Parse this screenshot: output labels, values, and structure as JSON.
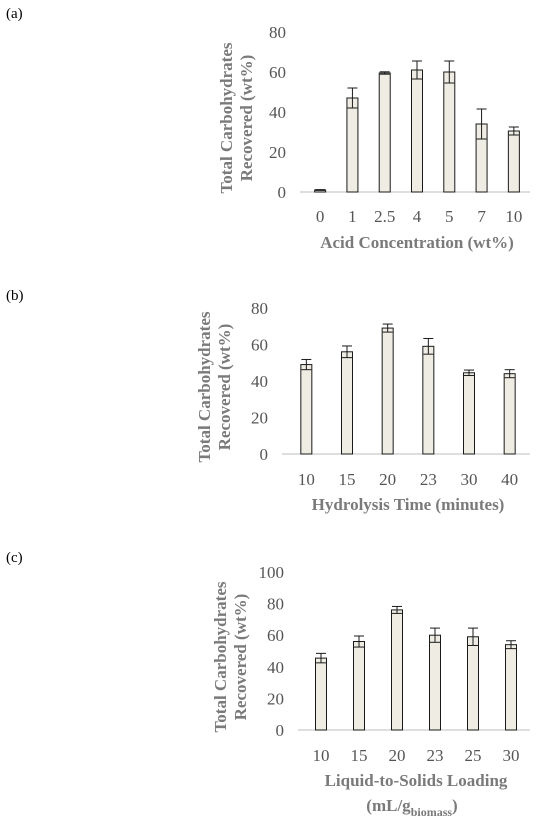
{
  "colors": {
    "bar_fill": "#efede3",
    "bar_stroke": "#1a1a1a",
    "axis": "#bdbdbd",
    "text": "#6e6e6e"
  },
  "chart_data": [
    {
      "panel": "(a)",
      "type": "bar",
      "categories": [
        "0",
        "1",
        "2.5",
        "4",
        "5",
        "7",
        "10"
      ],
      "values": [
        1,
        47,
        59.5,
        61,
        60,
        34,
        30.5
      ],
      "errors": [
        0.2,
        5,
        0.6,
        4.5,
        5.5,
        7.5,
        2
      ],
      "ylim": [
        0,
        80
      ],
      "yticks": [
        "0",
        "20",
        "40",
        "60",
        "80"
      ],
      "ylabel_line1": "Total Carbohydrates",
      "ylabel_line2": "Recovered (wt%)",
      "xlabel": "Acid Concentration (wt%)",
      "xlabel_sub": "",
      "xlabel_tail": "",
      "grid": false
    },
    {
      "panel": "(b)",
      "type": "bar",
      "categories": [
        "10",
        "15",
        "20",
        "23",
        "30",
        "40"
      ],
      "values": [
        49,
        56,
        69,
        59,
        44.5,
        44
      ],
      "errors": [
        2.8,
        3.2,
        2.2,
        4.3,
        1.5,
        2.2
      ],
      "ylim": [
        0,
        80
      ],
      "yticks": [
        "0",
        "20",
        "40",
        "60",
        "80"
      ],
      "ylabel_line1": "Total Carbohydrates",
      "ylabel_line2": "Recovered (wt%)",
      "xlabel": "Hydrolysis Time (minutes)",
      "xlabel_sub": "",
      "xlabel_tail": "",
      "grid": false
    },
    {
      "panel": "(c)",
      "type": "bar",
      "categories": [
        "10",
        "15",
        "20",
        "23",
        "25",
        "30"
      ],
      "values": [
        45.5,
        56,
        76,
        60,
        59,
        54
      ],
      "errors": [
        3,
        3.5,
        2.2,
        4.5,
        5.5,
        2.5
      ],
      "ylim": [
        0,
        100
      ],
      "yticks": [
        "0",
        "20",
        "40",
        "60",
        "80",
        "100"
      ],
      "ylabel_line1": "Total Carbohydrates",
      "ylabel_line2": "Recovered (wt%)",
      "xlabel": "Liquid-to-Solids Loading",
      "xlabel_sub": "biomass",
      "xlabel_line2": "(mL/g",
      "xlabel_tail": ")",
      "grid": false
    }
  ]
}
